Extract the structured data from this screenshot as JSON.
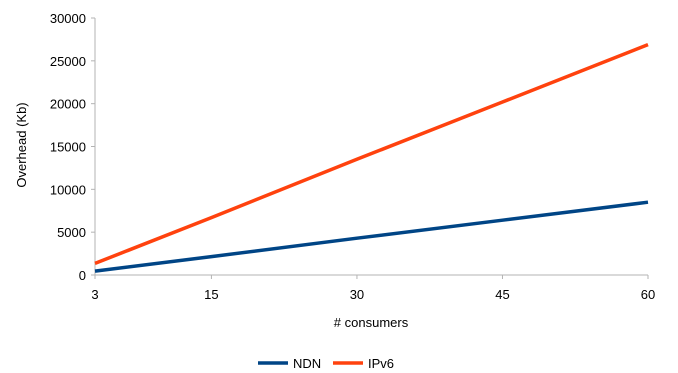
{
  "chart_data": {
    "type": "line",
    "x": [
      3,
      15,
      30,
      45,
      60
    ],
    "series": [
      {
        "name": "NDN",
        "values": [
          450,
          2150,
          4300,
          6400,
          8500
        ],
        "color": "#004586"
      },
      {
        "name": "IPv6",
        "values": [
          1350,
          6700,
          13500,
          20200,
          26900
        ],
        "color": "#ff420e"
      }
    ],
    "xlabel": "# consumers",
    "ylabel": "Overhead (Kb)",
    "xticks": [
      "3",
      "15",
      "30",
      "45",
      "60"
    ],
    "yticks": [
      "0",
      "5000",
      "10000",
      "15000",
      "20000",
      "25000",
      "30000"
    ],
    "xlim": [
      3,
      60
    ],
    "ylim": [
      0,
      30000
    ],
    "grid": false,
    "legend": "bottom-center"
  }
}
